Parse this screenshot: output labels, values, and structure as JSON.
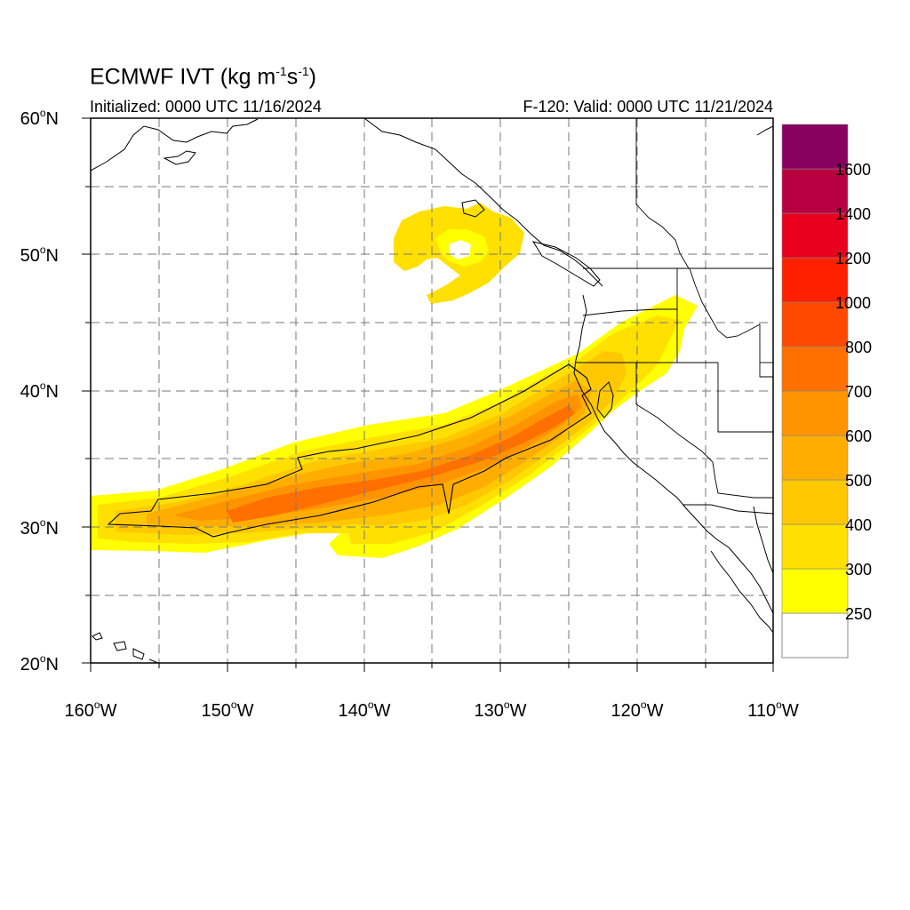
{
  "title": {
    "main": "ECMWF IVT (kg m",
    "sup1": "-1",
    "mid": "s",
    "sup2": "-1",
    "end": ")"
  },
  "subtitle": {
    "left": "Initialized: 0000 UTC 11/16/2024",
    "right": "F-120: Valid: 0000 UTC 11/21/2024"
  },
  "axes": {
    "lat_ticks": [
      {
        "deg": "60",
        "suf": "N"
      },
      {
        "deg": "50",
        "suf": "N"
      },
      {
        "deg": "40",
        "suf": "N"
      },
      {
        "deg": "30",
        "suf": "N"
      },
      {
        "deg": "20",
        "suf": "N"
      }
    ],
    "lon_ticks": [
      {
        "deg": "160",
        "suf": "W"
      },
      {
        "deg": "150",
        "suf": "W"
      },
      {
        "deg": "140",
        "suf": "W"
      },
      {
        "deg": "130",
        "suf": "W"
      },
      {
        "deg": "120",
        "suf": "W"
      },
      {
        "deg": "110",
        "suf": "W"
      }
    ],
    "lat_range": [
      20,
      60
    ],
    "lon_range": [
      -160,
      -110
    ],
    "grid": "dashed, every 5 degrees"
  },
  "colorbar": {
    "levels": [
      "250",
      "300",
      "400",
      "500",
      "600",
      "700",
      "800",
      "1000",
      "1200",
      "1400",
      "1600"
    ],
    "colors": [
      "#ffffff",
      "#ffff00",
      "#ffe000",
      "#ffc800",
      "#ffae00",
      "#ff9400",
      "#ff7000",
      "#ff4800",
      "#ff2000",
      "#e8001e",
      "#b80040",
      "#880060",
      "#5a0090"
    ]
  },
  "colors": {
    "c300": "#ffff00",
    "c400": "#ffe000",
    "c500": "#ffc800",
    "c600": "#ffae00",
    "c700": "#ff9400",
    "c800": "#ff7000"
  }
}
